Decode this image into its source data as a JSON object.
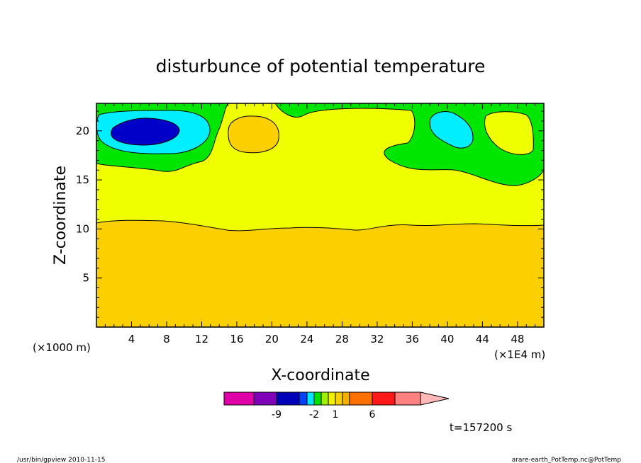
{
  "chart_data": {
    "type": "heatmap",
    "title": "disturbunce of potential temperature",
    "xlabel": "X-coordinate",
    "ylabel": "Z-coordinate",
    "x_unit_left": "(×1000 m)",
    "x_unit_right": "(×1E4 m)",
    "xlim": [
      0,
      51
    ],
    "ylim": [
      0,
      22.8
    ],
    "x_ticks": [
      {
        "v": 4,
        "label": "4"
      },
      {
        "v": 8,
        "label": "8"
      },
      {
        "v": 12,
        "label": "12"
      },
      {
        "v": 16,
        "label": "16"
      },
      {
        "v": 20,
        "label": "20"
      },
      {
        "v": 24,
        "label": "24"
      },
      {
        "v": 28,
        "label": "28"
      },
      {
        "v": 32,
        "label": "32"
      },
      {
        "v": 36,
        "label": "36"
      },
      {
        "v": 40,
        "label": "40"
      },
      {
        "v": 44,
        "label": "44"
      },
      {
        "v": 48,
        "label": "48"
      }
    ],
    "y_ticks": [
      {
        "v": 5,
        "label": "5"
      },
      {
        "v": 10,
        "label": "10"
      },
      {
        "v": 15,
        "label": "15"
      },
      {
        "v": 20,
        "label": "20"
      }
    ],
    "colorbar": {
      "colors": [
        "#e000a8",
        "#8000b8",
        "#0000b8",
        "#0040ff",
        "#00e8ff",
        "#00e000",
        "#a0f000",
        "#f0f000",
        "#f8d000",
        "#f8b000",
        "#ff7000",
        "#ff1818",
        "#ff8080",
        "#ffb8b8"
      ],
      "tick_labels": [
        "-9",
        "-2",
        "1",
        "6"
      ]
    },
    "fields": [
      {
        "name": "lower-layer",
        "color": "#fcd000"
      },
      {
        "name": "upper-layer",
        "color": "#f0ff00"
      },
      {
        "name": "green-region",
        "color": "#00e600"
      },
      {
        "name": "cyan-left",
        "color": "#00eeff"
      },
      {
        "name": "blue-core",
        "color": "#0000c8"
      },
      {
        "name": "orange-blob",
        "color": "#fcd000"
      },
      {
        "name": "cyan-right",
        "color": "#00eeff"
      },
      {
        "name": "yellow-blob",
        "color": "#f0ff00"
      }
    ],
    "annotation_time": "t=157200 s"
  },
  "footer": {
    "left": "/usr/bin/gpview 2010-11-15",
    "right": "arare-earth_PotTemp.nc@PotTemp"
  }
}
